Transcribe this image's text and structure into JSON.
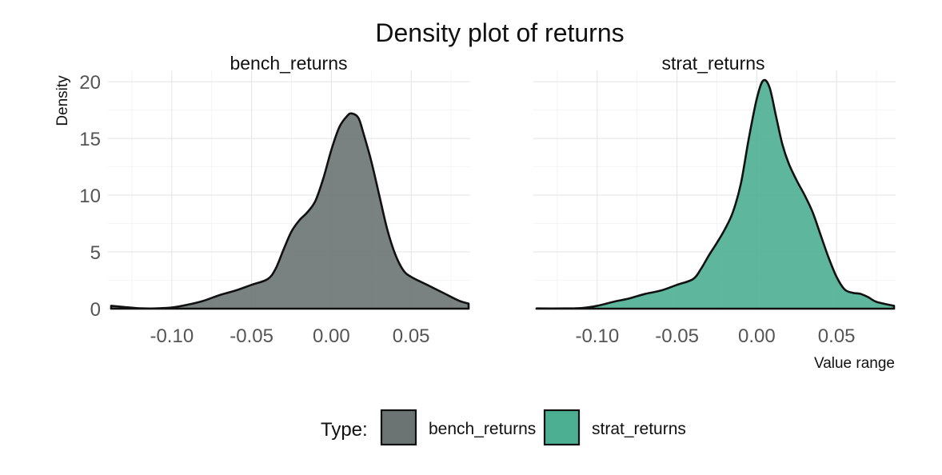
{
  "chart_data": {
    "type": "area",
    "chart_kind": "density",
    "title": "Density plot of returns",
    "xlabel": "Value range",
    "ylabel": "Density",
    "xlim": [
      -0.14,
      0.087
    ],
    "ylim": [
      0,
      21
    ],
    "x_ticks": [
      -0.1,
      -0.05,
      0.0,
      0.05
    ],
    "x_tick_labels": [
      "-0.10",
      "-0.05",
      "0.00",
      "0.05"
    ],
    "y_ticks": [
      0,
      5,
      10,
      15,
      20
    ],
    "y_tick_labels": [
      "0",
      "5",
      "10",
      "15",
      "20"
    ],
    "grid": true,
    "facets": [
      "bench_returns",
      "strat_returns"
    ],
    "legend": {
      "title": "Type:",
      "position": "bottom",
      "entries": [
        {
          "label": "bench_returns",
          "color": "#6b7373"
        },
        {
          "label": "strat_returns",
          "color": "#4daf91"
        }
      ]
    },
    "series": [
      {
        "name": "bench_returns",
        "color": "#6b7373",
        "points": [
          [
            -0.138,
            0.25
          ],
          [
            -0.13,
            0.15
          ],
          [
            -0.12,
            0.03
          ],
          [
            -0.11,
            0.02
          ],
          [
            -0.1,
            0.1
          ],
          [
            -0.09,
            0.35
          ],
          [
            -0.08,
            0.7
          ],
          [
            -0.07,
            1.2
          ],
          [
            -0.06,
            1.6
          ],
          [
            -0.05,
            2.1
          ],
          [
            -0.04,
            2.6
          ],
          [
            -0.035,
            3.5
          ],
          [
            -0.03,
            5.2
          ],
          [
            -0.025,
            6.8
          ],
          [
            -0.02,
            7.8
          ],
          [
            -0.015,
            8.5
          ],
          [
            -0.01,
            9.5
          ],
          [
            -0.005,
            11.5
          ],
          [
            0.0,
            14.0
          ],
          [
            0.005,
            16.0
          ],
          [
            0.01,
            17.0
          ],
          [
            0.013,
            17.2
          ],
          [
            0.017,
            16.8
          ],
          [
            0.02,
            15.5
          ],
          [
            0.025,
            13.0
          ],
          [
            0.03,
            10.0
          ],
          [
            0.035,
            7.0
          ],
          [
            0.04,
            4.8
          ],
          [
            0.045,
            3.4
          ],
          [
            0.05,
            2.8
          ],
          [
            0.06,
            2.1
          ],
          [
            0.07,
            1.4
          ],
          [
            0.08,
            0.7
          ],
          [
            0.086,
            0.45
          ]
        ]
      },
      {
        "name": "strat_returns",
        "color": "#4daf91",
        "points": [
          [
            -0.138,
            0.02
          ],
          [
            -0.12,
            0.02
          ],
          [
            -0.11,
            0.05
          ],
          [
            -0.1,
            0.25
          ],
          [
            -0.09,
            0.6
          ],
          [
            -0.08,
            0.9
          ],
          [
            -0.07,
            1.3
          ],
          [
            -0.06,
            1.6
          ],
          [
            -0.05,
            2.1
          ],
          [
            -0.04,
            2.6
          ],
          [
            -0.035,
            3.5
          ],
          [
            -0.03,
            4.7
          ],
          [
            -0.025,
            5.8
          ],
          [
            -0.02,
            7.0
          ],
          [
            -0.015,
            8.5
          ],
          [
            -0.01,
            11.0
          ],
          [
            -0.005,
            15.0
          ],
          [
            0.0,
            18.5
          ],
          [
            0.004,
            20.1
          ],
          [
            0.008,
            19.5
          ],
          [
            0.012,
            17.0
          ],
          [
            0.016,
            14.5
          ],
          [
            0.02,
            12.8
          ],
          [
            0.025,
            11.3
          ],
          [
            0.03,
            10.0
          ],
          [
            0.035,
            8.5
          ],
          [
            0.04,
            6.5
          ],
          [
            0.045,
            4.5
          ],
          [
            0.05,
            2.8
          ],
          [
            0.055,
            1.7
          ],
          [
            0.06,
            1.4
          ],
          [
            0.065,
            1.3
          ],
          [
            0.07,
            1.0
          ],
          [
            0.075,
            0.6
          ],
          [
            0.086,
            0.25
          ]
        ]
      }
    ]
  }
}
